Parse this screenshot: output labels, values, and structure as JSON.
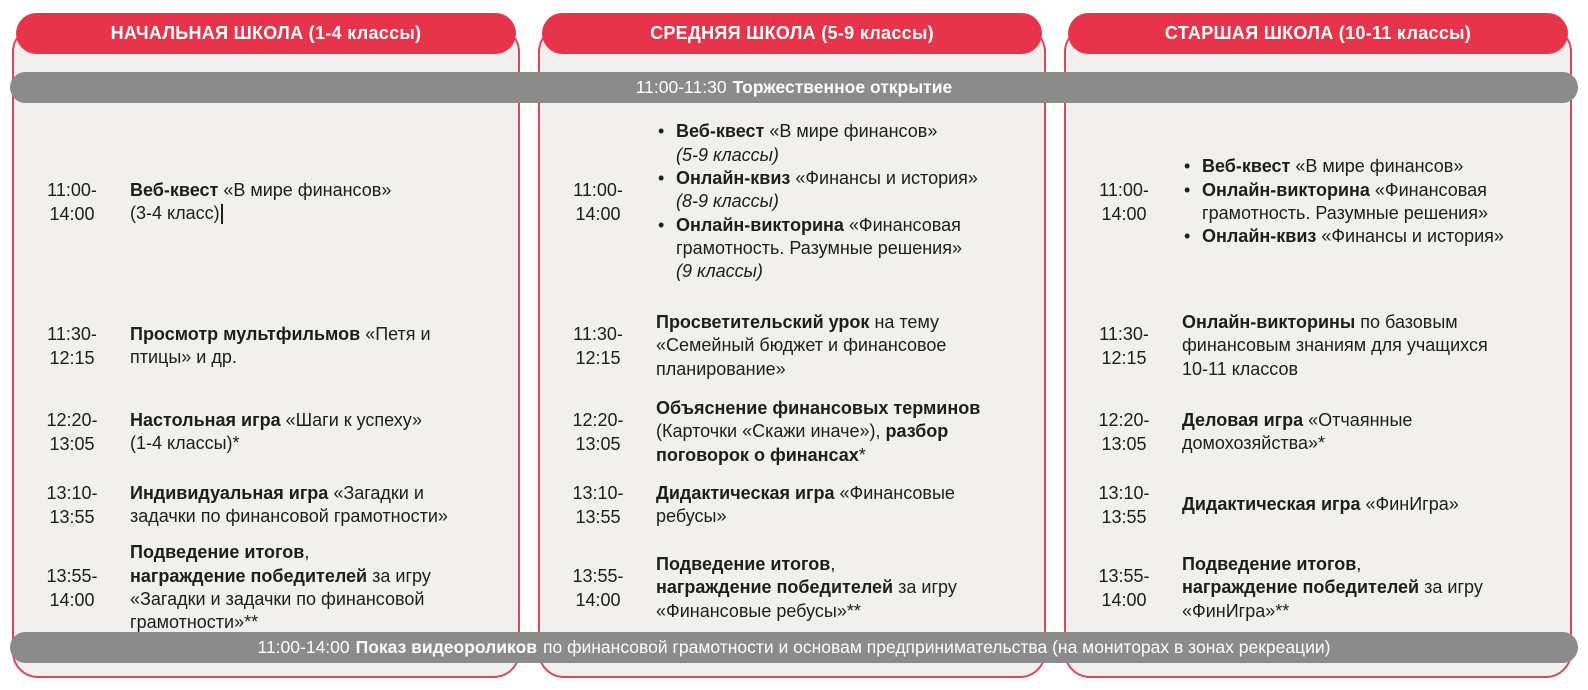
{
  "colors": {
    "accent": "#e7344a",
    "column_border": "#d9485b",
    "banner_gray": "#8b8b8b",
    "column_bg": "#f1f0ee",
    "text": "#1d1d1b"
  },
  "top_banner": {
    "time": "11:00-11:30",
    "title": "Торжественное открытие"
  },
  "bottom_banner": {
    "time": "11:00-14:00",
    "highlight": "Показ видеороликов",
    "rest": "по финансовой грамотности и основам предпринимательства (на мониторах в зонах рекреации)"
  },
  "columns": [
    {
      "header": "НАЧАЛЬНАЯ ШКОЛА (1-4 классы)",
      "rows": [
        {
          "time": [
            "11:00-",
            "14:00"
          ],
          "items": [
            {
              "bullet": false,
              "caret": true,
              "segments": [
                {
                  "t": "Веб-квест",
                  "b": true
                },
                {
                  "t": " «В мире финансов»"
                },
                {
                  "br": true
                },
                {
                  "t": "(3-4 класс)"
                }
              ]
            }
          ]
        },
        {
          "time": [
            "11:30-",
            "12:15"
          ],
          "items": [
            {
              "bullet": false,
              "segments": [
                {
                  "t": "Просмотр мультфильмов",
                  "b": true
                },
                {
                  "t": " «Петя и"
                },
                {
                  "br": true
                },
                {
                  "t": "птицы» и др."
                }
              ]
            }
          ]
        },
        {
          "time": [
            "12:20-",
            "13:05"
          ],
          "items": [
            {
              "bullet": false,
              "segments": [
                {
                  "t": "Настольная игра",
                  "b": true
                },
                {
                  "t": " «Шаги к успеху»"
                },
                {
                  "br": true
                },
                {
                  "t": "(1-4 классы)*"
                }
              ]
            }
          ]
        },
        {
          "time": [
            "13:10-",
            "13:55"
          ],
          "items": [
            {
              "bullet": false,
              "segments": [
                {
                  "t": "Индивидуальная игра",
                  "b": true
                },
                {
                  "t": " «Загадки и"
                },
                {
                  "br": true
                },
                {
                  "t": "задачки по финансовой грамотности»"
                }
              ]
            }
          ]
        },
        {
          "time": [
            "13:55-",
            "14:00"
          ],
          "items": [
            {
              "bullet": false,
              "segments": [
                {
                  "t": "Подведение итогов",
                  "b": true
                },
                {
                  "t": ","
                },
                {
                  "br": true
                },
                {
                  "t": "награждение победителей",
                  "b": true
                },
                {
                  "t": " за игру"
                },
                {
                  "br": true
                },
                {
                  "t": "«Загадки и задачки по финансовой"
                },
                {
                  "br": true
                },
                {
                  "t": "грамотности»**"
                }
              ]
            }
          ]
        }
      ]
    },
    {
      "header": "СРЕДНЯЯ ШКОЛА (5-9 классы)",
      "rows": [
        {
          "time": [
            "11:00-",
            "14:00"
          ],
          "items": [
            {
              "bullet": true,
              "segments": [
                {
                  "t": "Веб-квест",
                  "b": true
                },
                {
                  "t": " «В мире финансов»"
                },
                {
                  "br": true
                },
                {
                  "t": "(5-9 классы)",
                  "i": true
                }
              ]
            },
            {
              "bullet": true,
              "segments": [
                {
                  "t": "Онлайн-квиз",
                  "b": true
                },
                {
                  "t": " «Финансы и история»"
                },
                {
                  "br": true
                },
                {
                  "t": "(8-9 классы)",
                  "i": true
                }
              ]
            },
            {
              "bullet": true,
              "segments": [
                {
                  "t": "Онлайн-викторина",
                  "b": true
                },
                {
                  "t": " «Финансовая"
                },
                {
                  "br": true
                },
                {
                  "t": "грамотность. Разумные решения»"
                },
                {
                  "br": true
                },
                {
                  "t": "(9 классы)",
                  "i": true
                }
              ]
            }
          ]
        },
        {
          "time": [
            "11:30-",
            "12:15"
          ],
          "items": [
            {
              "bullet": false,
              "segments": [
                {
                  "t": "Просветительский урок",
                  "b": true
                },
                {
                  "t": " на тему"
                },
                {
                  "br": true
                },
                {
                  "t": "«Семейный бюджет и финансовое"
                },
                {
                  "br": true
                },
                {
                  "t": "планирование»"
                }
              ]
            }
          ]
        },
        {
          "time": [
            "12:20-",
            "13:05"
          ],
          "items": [
            {
              "bullet": false,
              "segments": [
                {
                  "t": "Объяснение финансовых терминов",
                  "b": true
                },
                {
                  "br": true
                },
                {
                  "t": "(Карточки «Скажи иначе»), "
                },
                {
                  "t": "разбор",
                  "b": true
                },
                {
                  "br": true
                },
                {
                  "t": "поговорок о финансах",
                  "b": true
                },
                {
                  "t": "*"
                }
              ]
            }
          ]
        },
        {
          "time": [
            "13:10-",
            "13:55"
          ],
          "items": [
            {
              "bullet": false,
              "segments": [
                {
                  "t": "Дидактическая игра",
                  "b": true
                },
                {
                  "t": " «Финансовые"
                },
                {
                  "br": true
                },
                {
                  "t": "ребусы»"
                }
              ]
            }
          ]
        },
        {
          "time": [
            "13:55-",
            "14:00"
          ],
          "items": [
            {
              "bullet": false,
              "segments": [
                {
                  "t": "Подведение итогов",
                  "b": true
                },
                {
                  "t": ","
                },
                {
                  "br": true
                },
                {
                  "t": "награждение победителей",
                  "b": true
                },
                {
                  "t": " за игру"
                },
                {
                  "br": true
                },
                {
                  "t": "«Финансовые ребусы»**"
                }
              ]
            }
          ]
        }
      ]
    },
    {
      "header": "СТАРШАЯ ШКОЛА (10-11 классы)",
      "rows": [
        {
          "time": [
            "11:00-",
            "14:00"
          ],
          "items": [
            {
              "bullet": true,
              "segments": [
                {
                  "t": "Веб-квест",
                  "b": true
                },
                {
                  "t": " «В мире финансов»"
                }
              ]
            },
            {
              "bullet": true,
              "segments": [
                {
                  "t": "Онлайн-викторина",
                  "b": true
                },
                {
                  "t": " «Финансовая"
                },
                {
                  "br": true
                },
                {
                  "t": "грамотность. Разумные решения»"
                }
              ]
            },
            {
              "bullet": true,
              "segments": [
                {
                  "t": "Онлайн-квиз",
                  "b": true
                },
                {
                  "t": " «Финансы и история»"
                }
              ]
            }
          ]
        },
        {
          "time": [
            "11:30-",
            "12:15"
          ],
          "items": [
            {
              "bullet": false,
              "segments": [
                {
                  "t": "Онлайн-викторины",
                  "b": true
                },
                {
                  "t": " по базовым"
                },
                {
                  "br": true
                },
                {
                  "t": "финансовым знаниям для учащихся"
                },
                {
                  "br": true
                },
                {
                  "t": "10-11 классов"
                }
              ]
            }
          ]
        },
        {
          "time": [
            "12:20-",
            "13:05"
          ],
          "items": [
            {
              "bullet": false,
              "segments": [
                {
                  "t": "Деловая игра",
                  "b": true
                },
                {
                  "t": " «Отчаянные"
                },
                {
                  "br": true
                },
                {
                  "t": "домохозяйства»*"
                }
              ]
            }
          ]
        },
        {
          "time": [
            "13:10-",
            "13:55"
          ],
          "items": [
            {
              "bullet": false,
              "segments": [
                {
                  "t": "Дидактическая игра",
                  "b": true
                },
                {
                  "t": " «ФинИгра»"
                }
              ]
            }
          ]
        },
        {
          "time": [
            "13:55-",
            "14:00"
          ],
          "items": [
            {
              "bullet": false,
              "segments": [
                {
                  "t": "Подведение итогов",
                  "b": true
                },
                {
                  "t": ","
                },
                {
                  "br": true
                },
                {
                  "t": "награждение победителей",
                  "b": true
                },
                {
                  "t": " за игру"
                },
                {
                  "br": true
                },
                {
                  "t": "«ФинИгра»**"
                }
              ]
            }
          ]
        }
      ]
    }
  ]
}
